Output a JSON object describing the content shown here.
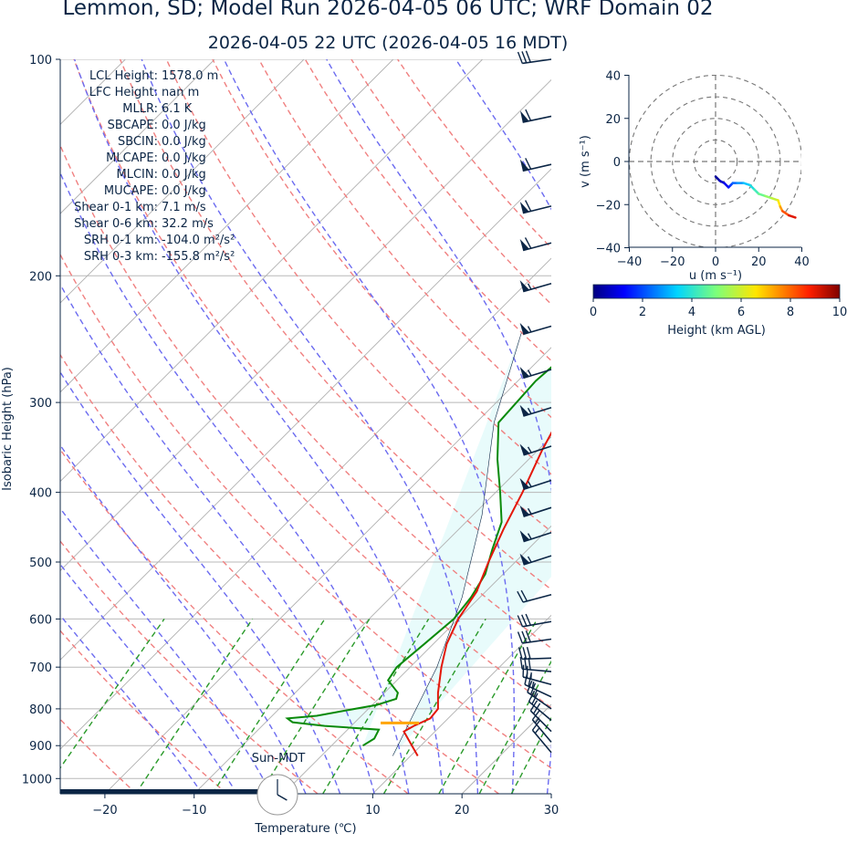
{
  "header": {
    "title": "Lemmon, SD; Model Run 2026-04-05 06 UTC; WRF Domain 02",
    "subtitle": "2026-04-05 22 UTC  (2026-04-05 16 MDT)"
  },
  "stats": [
    {
      "label": "LCL Height:",
      "value": "1578.0 m"
    },
    {
      "label": "LFC Height:",
      "value": "nan m"
    },
    {
      "label": "MLLR:",
      "value": "6.1 K"
    },
    {
      "label": "SBCAPE:",
      "value": "0.0 J/kg"
    },
    {
      "label": "SBCIN:",
      "value": "0.0 J/kg"
    },
    {
      "label": "MLCAPE:",
      "value": "0.0 J/kg"
    },
    {
      "label": "MLCIN:",
      "value": "0.0 J/kg"
    },
    {
      "label": "MUCAPE:",
      "value": "0.0 J/kg"
    },
    {
      "label": "Shear 0-1 km:",
      "value": "7.1 m/s"
    },
    {
      "label": "Shear 0-6 km:",
      "value": "32.2 m/s"
    },
    {
      "label": "SRH 0-1 km:",
      "value": "-104.0 m²/s²"
    },
    {
      "label": "SRH 0-3 km:",
      "value": "-155.8 m²/s²"
    }
  ],
  "clock_label": "Sun-MDT",
  "clock_time": {
    "hour": 16,
    "minute": 0
  },
  "colors": {
    "temperature": "#e3170a",
    "dewpoint": "#0a8a0a",
    "dry_adiabat": "#f08080",
    "moist_adiabat": "#6b6bf0",
    "mixing_ratio": "#2a9a2a",
    "isotherm": "#b0b0b0",
    "cape_fill": "#e8fbfb",
    "lcl_marker": "#ffa500",
    "barb": "#0b2545"
  },
  "chart_data": [
    {
      "type": "line",
      "name": "skew-t",
      "xlabel": "Temperature (℃)",
      "ylabel": "Isobaric Height (hPa)",
      "xlim": [
        -25,
        30
      ],
      "ylim": [
        1050,
        100
      ],
      "y_scale": "log",
      "x_ticks": [
        -20,
        -10,
        0,
        10,
        20,
        30
      ],
      "y_ticks": [
        100,
        200,
        300,
        400,
        500,
        600,
        700,
        800,
        900,
        1000
      ],
      "series": [
        {
          "key": "temperature",
          "points": [
            [
              10.8,
              930
            ],
            [
              6.5,
              860
            ],
            [
              7.0,
              845
            ],
            [
              8.0,
              825
            ],
            [
              7.8,
              800
            ],
            [
              6.0,
              760
            ],
            [
              3.5,
              700
            ],
            [
              1.5,
              650
            ],
            [
              0,
              600
            ],
            [
              -1,
              550
            ],
            [
              -3,
              500
            ],
            [
              -5,
              450
            ],
            [
              -7,
              400
            ],
            [
              -9.5,
              350
            ],
            [
              -12,
              300
            ],
            [
              -14,
              260
            ],
            [
              -14.5,
              230
            ],
            [
              -12,
              210
            ],
            [
              -4,
              185
            ],
            [
              6,
              160
            ],
            [
              14,
              140
            ],
            [
              18,
              125
            ],
            [
              25,
              100
            ]
          ]
        },
        {
          "key": "dewpoint",
          "points": [
            [
              3.5,
              900
            ],
            [
              4,
              880
            ],
            [
              3.5,
              855
            ],
            [
              -3,
              845
            ],
            [
              -7,
              835
            ],
            [
              -8,
              825
            ],
            [
              -5,
              818
            ],
            [
              -2.5,
              805
            ],
            [
              0.5,
              790
            ],
            [
              2,
              775
            ],
            [
              1.5,
              760
            ],
            [
              -1,
              730
            ],
            [
              -1.5,
              700
            ],
            [
              -1,
              650
            ],
            [
              -0.5,
              600
            ],
            [
              -1,
              560
            ],
            [
              -2,
              520
            ],
            [
              -4,
              480
            ],
            [
              -6,
              440
            ],
            [
              -9.5,
              400
            ],
            [
              -13.5,
              360
            ],
            [
              -17.5,
              320
            ],
            [
              -18,
              280
            ],
            [
              -17,
              230
            ],
            [
              -15.5,
              195
            ],
            [
              -15,
              175
            ],
            [
              -15.5,
              160
            ],
            [
              -13,
              140
            ],
            [
              -6,
              115
            ],
            [
              -1,
              100
            ]
          ]
        },
        {
          "key": "parcel",
          "points": [
            [
              -25,
              240
            ],
            [
              -18,
              320
            ],
            [
              -9,
              430
            ],
            [
              -2,
              560
            ],
            [
              3,
              700
            ],
            [
              6.2,
              840
            ],
            [
              8,
              930
            ]
          ]
        }
      ],
      "lcl": {
        "pressure": 837,
        "temperature": 5.2
      },
      "wind_barbs": [
        {
          "pressure": 100,
          "speed": 30,
          "dir": 262
        },
        {
          "pressure": 120,
          "speed": 60,
          "dir": 258
        },
        {
          "pressure": 140,
          "speed": 60,
          "dir": 257
        },
        {
          "pressure": 160,
          "speed": 60,
          "dir": 256
        },
        {
          "pressure": 180,
          "speed": 60,
          "dir": 255
        },
        {
          "pressure": 205,
          "speed": 55,
          "dir": 254
        },
        {
          "pressure": 235,
          "speed": 55,
          "dir": 254
        },
        {
          "pressure": 270,
          "speed": 55,
          "dir": 253
        },
        {
          "pressure": 305,
          "speed": 55,
          "dir": 253
        },
        {
          "pressure": 345,
          "speed": 55,
          "dir": 252
        },
        {
          "pressure": 385,
          "speed": 55,
          "dir": 252
        },
        {
          "pressure": 420,
          "speed": 55,
          "dir": 252
        },
        {
          "pressure": 455,
          "speed": 55,
          "dir": 252
        },
        {
          "pressure": 490,
          "speed": 55,
          "dir": 252
        },
        {
          "pressure": 555,
          "speed": 20,
          "dir": 255
        },
        {
          "pressure": 605,
          "speed": 30,
          "dir": 260
        },
        {
          "pressure": 640,
          "speed": 30,
          "dir": 262
        },
        {
          "pressure": 680,
          "speed": 30,
          "dir": 268
        },
        {
          "pressure": 710,
          "speed": 30,
          "dir": 275
        },
        {
          "pressure": 740,
          "speed": 25,
          "dir": 285
        },
        {
          "pressure": 770,
          "speed": 25,
          "dir": 295
        },
        {
          "pressure": 800,
          "speed": 25,
          "dir": 305
        },
        {
          "pressure": 830,
          "speed": 20,
          "dir": 310
        },
        {
          "pressure": 860,
          "speed": 20,
          "dir": 315
        },
        {
          "pressure": 890,
          "speed": 15,
          "dir": 320
        },
        {
          "pressure": 920,
          "speed": 15,
          "dir": 320
        }
      ]
    },
    {
      "type": "line",
      "name": "hodograph",
      "xlabel": "u (m s⁻¹)",
      "ylabel": "v (m s⁻¹)",
      "xlim": [
        -40,
        40
      ],
      "ylim": [
        -40,
        40
      ],
      "x_ticks": [
        -40,
        -20,
        0,
        20,
        40
      ],
      "y_ticks": [
        -40,
        -20,
        0,
        20,
        40
      ],
      "rings": [
        10,
        20,
        30,
        40
      ],
      "points": [
        [
          0,
          -7,
          0.1
        ],
        [
          2,
          -9,
          0.5
        ],
        [
          4,
          -10,
          0.9
        ],
        [
          6,
          -12,
          1.3
        ],
        [
          7,
          -11,
          1.7
        ],
        [
          8,
          -10,
          2.1
        ],
        [
          10,
          -10,
          2.5
        ],
        [
          13,
          -10,
          3.0
        ],
        [
          16,
          -11,
          3.5
        ],
        [
          18,
          -13,
          4.0
        ],
        [
          20,
          -15,
          4.5
        ],
        [
          23,
          -16,
          5.0
        ],
        [
          26,
          -17,
          5.5
        ],
        [
          29,
          -18,
          6.2
        ],
        [
          30,
          -21,
          7.0
        ],
        [
          31,
          -23,
          7.8
        ],
        [
          34,
          -25,
          8.6
        ],
        [
          37,
          -26,
          9.5
        ]
      ],
      "colorbar": {
        "label": "Height (km AGL)",
        "min": 0,
        "max": 10,
        "ticks": [
          0,
          2,
          4,
          6,
          8,
          10
        ]
      }
    }
  ]
}
